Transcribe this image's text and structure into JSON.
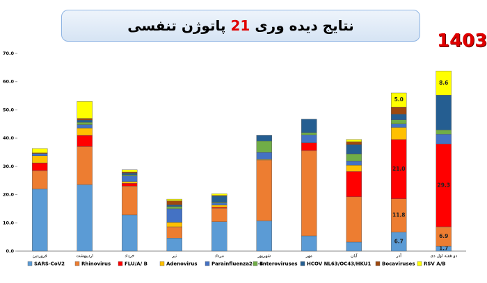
{
  "chart_data": {
    "type": "stacked-bar",
    "title_parts": [
      "نتایج دیده وری",
      "21",
      "پاتوژن تنفسی"
    ],
    "year": "1403",
    "categories": [
      "فروردین",
      "اردیبهشت",
      "خرداد",
      "تیر",
      "مرداد",
      "شهریور",
      "مهر",
      "آبان",
      "آذر",
      "دو هفته اول دی"
    ],
    "ylim": [
      0,
      70
    ],
    "yticks": [
      {
        "value": 0,
        "label": "0.0"
      },
      {
        "value": 10,
        "label": "10.0"
      },
      {
        "value": 20,
        "label": "20.0"
      },
      {
        "value": 30,
        "label": "30.0"
      },
      {
        "value": 40,
        "label": "40.0"
      },
      {
        "value": 50,
        "label": "50.0"
      },
      {
        "value": 60,
        "label": "60.0"
      },
      {
        "value": 70,
        "label": "70.0"
      }
    ],
    "grid": false,
    "series": [
      {
        "name": "SARS-CoV2",
        "color": "#5b9bd5",
        "values": [
          22,
          23.5,
          12.8,
          4.6,
          10.4,
          10.7,
          5.4,
          3.2,
          6.7,
          1.7
        ],
        "value_labels": [
          null,
          null,
          null,
          null,
          null,
          null,
          null,
          null,
          "6.7",
          "1.7"
        ]
      },
      {
        "name": "Rhinovirus",
        "color": "#ed7d31",
        "values": [
          6.5,
          13.5,
          10.2,
          4,
          4.8,
          21.5,
          30.2,
          16,
          11.8,
          6.9
        ],
        "value_labels": [
          null,
          null,
          null,
          null,
          null,
          null,
          null,
          null,
          "11.8",
          "6.9"
        ]
      },
      {
        "name": "FLU/A/ B",
        "color": "#ff0000",
        "values": [
          2.7,
          4,
          1,
          0,
          0.3,
          0,
          2.8,
          9,
          21,
          29.3
        ],
        "value_labels": [
          null,
          null,
          null,
          null,
          null,
          null,
          null,
          null,
          "21.0",
          "29.3"
        ]
      },
      {
        "name": "Adenovirus",
        "color": "#ffc000",
        "values": [
          2.5,
          2.5,
          0.6,
          1.6,
          0.8,
          0.3,
          0,
          2.2,
          4.3,
          0
        ]
      },
      {
        "name": "Parainfluenza2-3-4",
        "color": "#4472c4",
        "values": [
          0.8,
          1.3,
          2,
          4.8,
          0.7,
          2.5,
          2.7,
          1.5,
          1.2,
          3.5
        ]
      },
      {
        "name": "Enteroviruses",
        "color": "#70ad47",
        "values": [
          0,
          0.8,
          0.4,
          0.8,
          0.3,
          4,
          0.8,
          2.5,
          1.5,
          1.5
        ]
      },
      {
        "name": "HCOV NL63/OC43/HKU1",
        "color": "#255e91",
        "values": [
          0,
          0.8,
          0.6,
          0.6,
          2.2,
          2,
          4.8,
          3.3,
          2,
          12.3
        ]
      },
      {
        "name": "Bocaviruses",
        "color": "#9e480e",
        "values": [
          0.3,
          0.6,
          0.4,
          1.4,
          0.2,
          0,
          0,
          1,
          2.5,
          0
        ]
      },
      {
        "name": "RSV A/B",
        "color": "#ffff00",
        "values": [
          1.5,
          6,
          0.8,
          0.6,
          0.6,
          0,
          0,
          0.8,
          5,
          8.6
        ],
        "value_labels": [
          null,
          null,
          null,
          null,
          null,
          null,
          null,
          null,
          "5.0",
          "8.6"
        ]
      }
    ]
  }
}
